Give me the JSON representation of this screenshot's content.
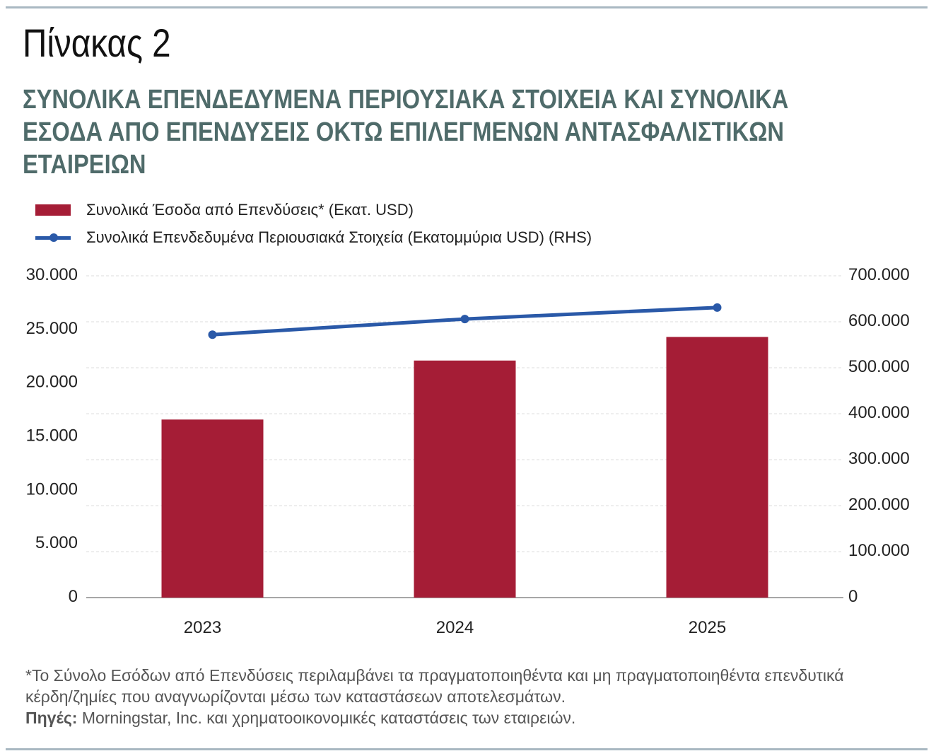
{
  "label": "Πίνακας 2",
  "title_lines": [
    "ΣΥΝΟΛΙΚΑ ΕΠΕΝΔΕΔΥΜΕΝΑ ΠΕΡΙΟΥΣΙΑΚΑ ΣΤΟΙΧΕΙΑ ΚΑΙ ΣΥΝΟΛΙΚΑ",
    "ΕΣΟΔΑ ΑΠΟ ΕΠΕΝΔΥΣΕΙΣ ΟΚΤΩ ΕΠΙΛΕΓΜΕΝΩΝ ΑΝΤΑΣΦΑΛΙΣΤΙΚΩΝ",
    "ΕΤΑΙΡΕΙΩΝ"
  ],
  "notes": {
    "footnote": "*Το Σύνολο Εσόδων από Επενδύσεις περιλαμβάνει τα πραγματοποιηθέντα και μη πραγματοποιηθέντα επενδυτικά κέρδη/ζημίες που αναγνωρίζονται μέσω των καταστάσεων αποτελεσμάτων.",
    "source_label": "Πηγές:",
    "source": " Morningstar, Inc. και χρηματοοικονομικές καταστάσεις των εταιρειών."
  },
  "chart_data": {
    "type": "bar+line",
    "categories": [
      "2023",
      "2024",
      "2025"
    ],
    "series": [
      {
        "name": "Συνολικά Έσοδα από Επενδύσεις* (Εκατ. USD)",
        "type": "bar",
        "axis": "left",
        "color": "#a51d36",
        "values": [
          16600,
          22100,
          24300
        ]
      },
      {
        "name": "Συνολικά Επενδεδυμένα Περιουσιακά Στοιχεία (Εκατομμύρια USD) (RHS)",
        "type": "line",
        "axis": "right",
        "color": "#2a59a8",
        "values": [
          572000,
          606000,
          631000
        ]
      }
    ],
    "left_axis": {
      "range": [
        0,
        30000
      ],
      "ticks": [
        "0",
        "5.000",
        "10.000",
        "15.000",
        "20.000",
        "25.000",
        "30.000"
      ]
    },
    "right_axis": {
      "range": [
        0,
        700000
      ],
      "ticks": [
        "0",
        "100.000",
        "200.000",
        "300.000",
        "400.000",
        "500.000",
        "600.000",
        "700.000"
      ]
    },
    "grid": true,
    "legend": "top-left"
  }
}
